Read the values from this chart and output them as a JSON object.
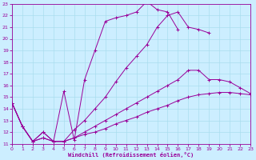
{
  "xlabel": "Windchill (Refroidissement éolien,°C)",
  "xlim": [
    0,
    23
  ],
  "ylim": [
    11,
    23
  ],
  "xticks": [
    0,
    1,
    2,
    3,
    4,
    5,
    6,
    7,
    8,
    9,
    10,
    11,
    12,
    13,
    14,
    15,
    16,
    17,
    18,
    19,
    20,
    21,
    22,
    23
  ],
  "yticks": [
    11,
    12,
    13,
    14,
    15,
    16,
    17,
    18,
    19,
    20,
    21,
    22,
    23
  ],
  "bg_color": "#cceeff",
  "grid_color": "#aaddee",
  "line_color": "#990099",
  "line1_x": [
    0,
    1,
    2,
    3,
    4,
    5,
    6,
    7,
    8,
    9,
    10,
    11,
    12,
    13,
    14,
    15,
    16,
    17,
    18,
    19,
    20
  ],
  "line1_y": [
    14.5,
    12.5,
    11.2,
    12.0,
    11.2,
    15.5,
    11.3,
    16.5,
    19.0,
    21.5,
    21.8,
    22.0,
    22.3,
    23.2,
    22.5,
    22.3,
    20.8,
    null,
    null,
    null,
    null
  ],
  "line2_x": [
    0,
    1,
    2,
    3,
    4,
    5,
    6,
    7,
    8,
    9,
    10,
    11,
    12,
    13,
    14,
    15,
    16,
    17,
    18,
    19,
    20,
    21,
    22,
    23
  ],
  "line2_y": [
    14.5,
    12.5,
    11.2,
    12.0,
    11.2,
    11.2,
    12.2,
    13.0,
    14.0,
    15.0,
    16.3,
    17.5,
    18.5,
    19.5,
    21.0,
    22.0,
    22.3,
    21.0,
    20.8,
    20.5,
    null,
    null,
    null,
    null
  ],
  "line3_x": [
    0,
    1,
    2,
    3,
    4,
    5,
    6,
    7,
    8,
    9,
    10,
    11,
    12,
    13,
    14,
    15,
    16,
    17,
    18,
    19,
    20,
    21,
    22,
    23
  ],
  "line3_y": [
    14.5,
    12.5,
    11.2,
    11.5,
    11.2,
    11.2,
    11.5,
    12.0,
    12.5,
    13.0,
    13.5,
    14.0,
    14.5,
    15.0,
    15.5,
    16.0,
    16.5,
    17.3,
    17.3,
    16.5,
    16.5,
    16.3,
    15.8,
    15.3
  ],
  "line4_x": [
    0,
    1,
    2,
    3,
    4,
    5,
    6,
    7,
    8,
    9,
    10,
    11,
    12,
    13,
    14,
    15,
    16,
    17,
    18,
    19,
    20,
    21,
    22,
    23
  ],
  "line4_y": [
    14.5,
    12.5,
    11.2,
    11.5,
    11.2,
    11.2,
    11.5,
    11.8,
    12.0,
    12.3,
    12.7,
    13.0,
    13.3,
    13.7,
    14.0,
    14.3,
    14.7,
    15.0,
    15.2,
    15.3,
    15.4,
    15.4,
    15.3,
    15.2
  ]
}
